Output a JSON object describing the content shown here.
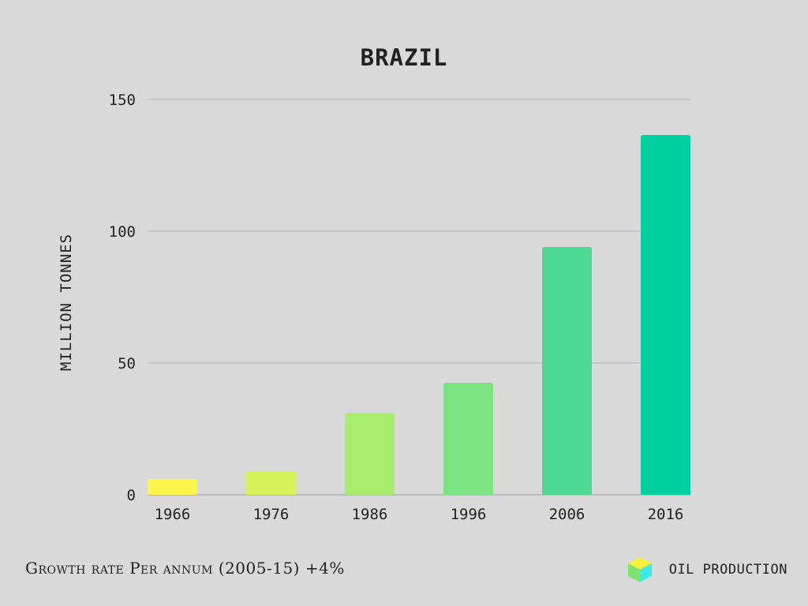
{
  "chart_data": {
    "type": "bar",
    "title": "BRAZIL",
    "ylabel": "MILLION TONNES",
    "xlabel": "",
    "categories": [
      "1966",
      "1976",
      "1986",
      "1996",
      "2006",
      "2016"
    ],
    "values": [
      6,
      9,
      31,
      42.5,
      94,
      136.5
    ],
    "ylim": [
      0,
      150
    ],
    "yticks": [
      0,
      50,
      100,
      150
    ],
    "grid": true,
    "colors": [
      "#fdf64a",
      "#d6f25a",
      "#a8ec6e",
      "#7ce383",
      "#4dd993",
      "#00cfa0"
    ]
  },
  "footer": {
    "note": "Growth rate Per annum (2005-15) +4%",
    "brand_label": "OIL PRODUCTION",
    "brand_icon": "cube-icon",
    "brand_colors": {
      "top": "#f7ef3a",
      "left": "#7be36e",
      "right": "#3de8e8"
    }
  }
}
